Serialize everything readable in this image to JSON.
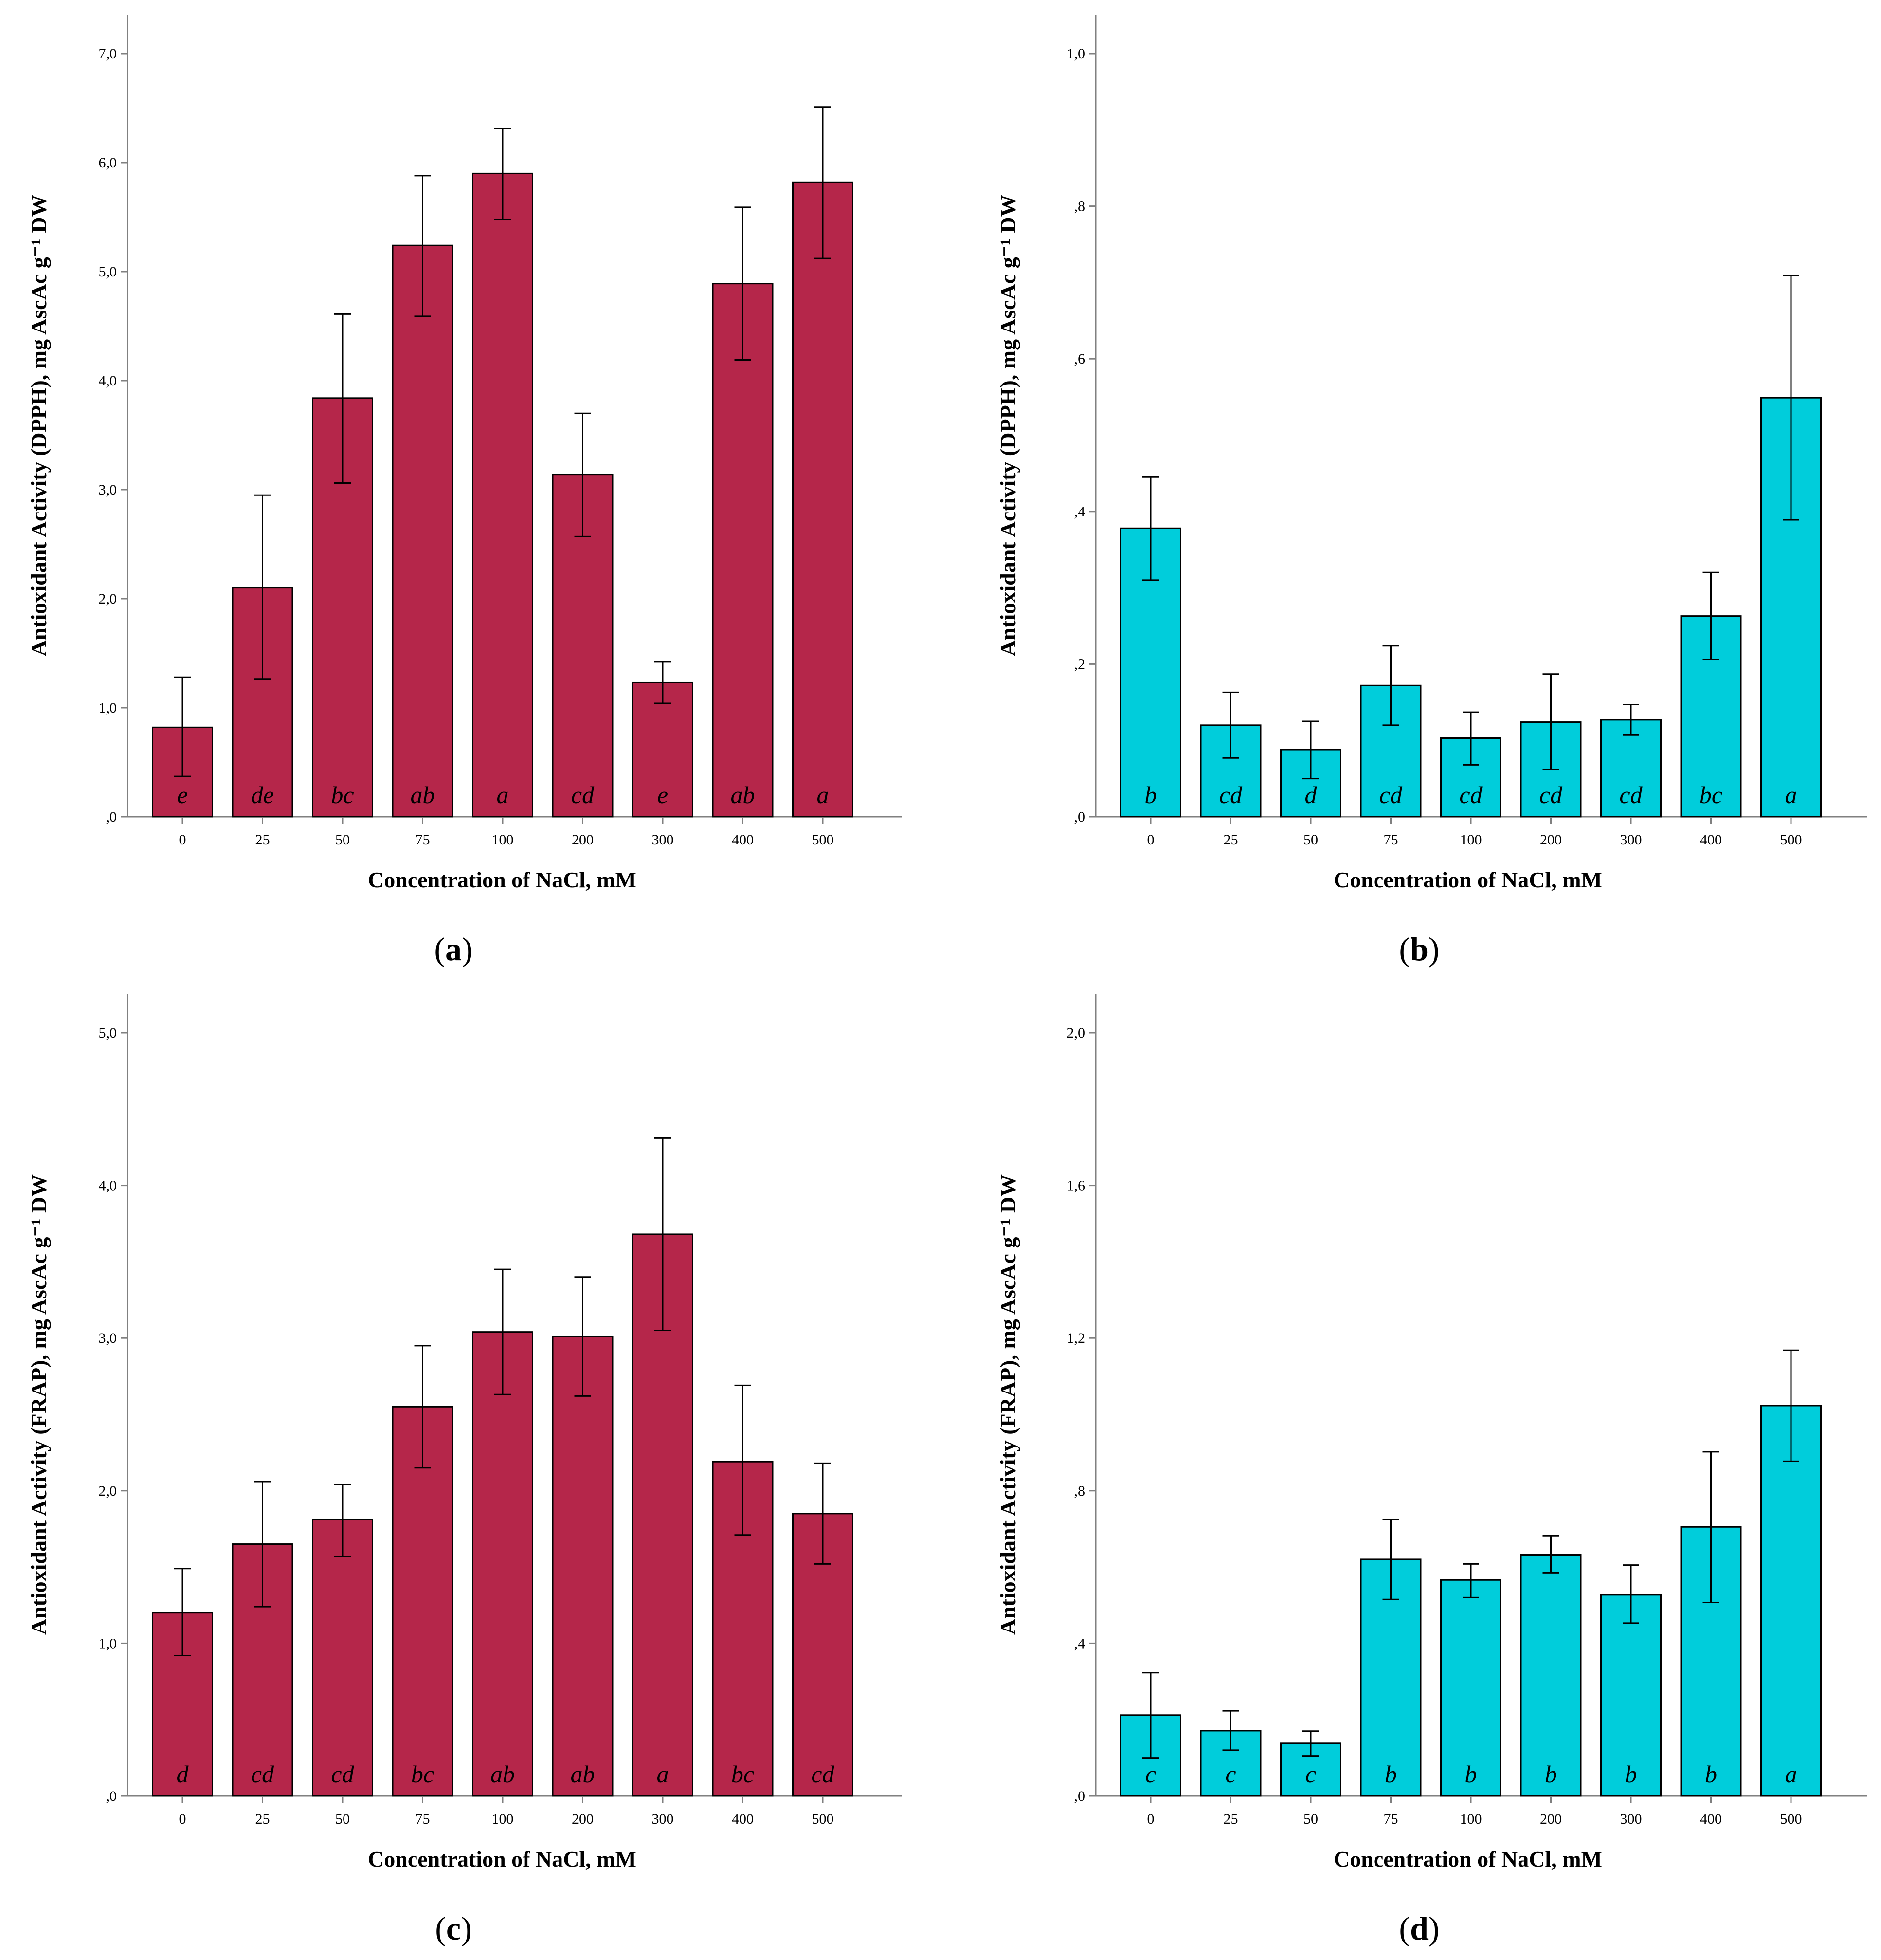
{
  "colors": {
    "red": "#b5264a",
    "cyan": "#00cddb",
    "axis": "#808080",
    "stroke": "#000000"
  },
  "chart_data": [
    {
      "type": "bar",
      "panel": "a",
      "panel_label": {
        "open": "(",
        "letter": "a",
        "close": ")"
      },
      "color": "#b5264a",
      "categories": [
        "0",
        "25",
        "50",
        "75",
        "100",
        "200",
        "300",
        "400",
        "500"
      ],
      "values": [
        0.82,
        2.1,
        3.84,
        5.24,
        5.9,
        3.14,
        1.23,
        4.89,
        5.82
      ],
      "error_low": [
        0.37,
        1.26,
        3.06,
        4.59,
        5.48,
        2.57,
        1.04,
        4.19,
        5.12
      ],
      "error_high": [
        1.28,
        2.95,
        4.61,
        5.88,
        6.31,
        3.7,
        1.42,
        5.59,
        6.51
      ],
      "significance": [
        "e",
        "de",
        "bc",
        "ab",
        "a",
        "cd",
        "e",
        "ab",
        "a"
      ],
      "xlabel": "Concentration of NaCl, mM",
      "ylabel": "Antioxidant Activity (DPPH), mg AscAc g⁻¹ DW",
      "ylim": [
        0,
        7.0
      ],
      "yticks": [
        0,
        1,
        2,
        3,
        4,
        5,
        6,
        7
      ],
      "ytick_labels": [
        ",0",
        "1,0",
        "2,0",
        "3,0",
        "4,0",
        "5,0",
        "6,0",
        "7,0"
      ]
    },
    {
      "type": "bar",
      "panel": "b",
      "panel_label": {
        "open": "(",
        "letter": "b",
        "close": ")"
      },
      "color": "#00cddb",
      "categories": [
        "0",
        "25",
        "50",
        "75",
        "100",
        "200",
        "300",
        "400",
        "500"
      ],
      "values": [
        0.378,
        0.12,
        0.088,
        0.172,
        0.103,
        0.124,
        0.127,
        0.263,
        0.549
      ],
      "error_low": [
        0.31,
        0.077,
        0.05,
        0.12,
        0.068,
        0.062,
        0.107,
        0.206,
        0.389
      ],
      "error_high": [
        0.445,
        0.163,
        0.125,
        0.224,
        0.137,
        0.187,
        0.147,
        0.32,
        0.709
      ],
      "significance": [
        "b",
        "cd",
        "d",
        "cd",
        "cd",
        "cd",
        "cd",
        "bc",
        "a"
      ],
      "xlabel": "Concentration of NaCl, mM",
      "ylabel": "Antioxidant Activity (DPPH), mg AscAc g⁻¹ DW",
      "ylim": [
        0,
        1.0
      ],
      "yticks": [
        0,
        0.2,
        0.4,
        0.6,
        0.8,
        1.0
      ],
      "ytick_labels": [
        ",0",
        ",2",
        ",4",
        ",6",
        ",8",
        "1,0"
      ]
    },
    {
      "type": "bar",
      "panel": "c",
      "panel_label": {
        "open": "(",
        "letter": "c",
        "close": ")"
      },
      "color": "#b5264a",
      "categories": [
        "0",
        "25",
        "50",
        "75",
        "100",
        "200",
        "300",
        "400",
        "500"
      ],
      "values": [
        1.2,
        1.65,
        1.81,
        2.55,
        3.04,
        3.01,
        3.68,
        2.19,
        1.85
      ],
      "error_low": [
        0.92,
        1.24,
        1.57,
        2.15,
        2.63,
        2.62,
        3.05,
        1.71,
        1.52
      ],
      "error_high": [
        1.49,
        2.06,
        2.04,
        2.95,
        3.45,
        3.4,
        4.31,
        2.69,
        2.18
      ],
      "significance": [
        "d",
        "cd",
        "cd",
        "bc",
        "ab",
        "ab",
        "a",
        "bc",
        "cd"
      ],
      "xlabel": "Concentration of NaCl, mM",
      "ylabel": "Antioxidant Activity (FRAP), mg AscAc g⁻¹ DW",
      "ylim": [
        0,
        5.0
      ],
      "yticks": [
        0,
        1,
        2,
        3,
        4,
        5
      ],
      "ytick_labels": [
        ",0",
        "1,0",
        "2,0",
        "3,0",
        "4,0",
        "5,0"
      ]
    },
    {
      "type": "bar",
      "panel": "d",
      "panel_label": {
        "open": "(",
        "letter": "d",
        "close": ")"
      },
      "color": "#00cddb",
      "categories": [
        "0",
        "25",
        "50",
        "75",
        "100",
        "200",
        "300",
        "400",
        "500"
      ],
      "values": [
        0.212,
        0.171,
        0.138,
        0.62,
        0.566,
        0.632,
        0.527,
        0.705,
        1.023
      ],
      "error_low": [
        0.1,
        0.12,
        0.105,
        0.515,
        0.52,
        0.585,
        0.453,
        0.507,
        0.877
      ],
      "error_high": [
        0.323,
        0.223,
        0.17,
        0.725,
        0.608,
        0.682,
        0.605,
        0.902,
        1.168
      ],
      "significance": [
        "c",
        "c",
        "c",
        "b",
        "b",
        "b",
        "b",
        "b",
        "a"
      ],
      "xlabel": "Concentration of NaCl, mM",
      "ylabel": "Antioxidant Activity (FRAP), mg AscAc g⁻¹ DW",
      "ylim": [
        0,
        2.0
      ],
      "yticks": [
        0,
        0.4,
        0.8,
        1.2,
        1.6,
        2.0
      ],
      "ytick_labels": [
        ",0",
        ",4",
        ",8",
        "1,2",
        "1,6",
        "2,0"
      ]
    }
  ]
}
